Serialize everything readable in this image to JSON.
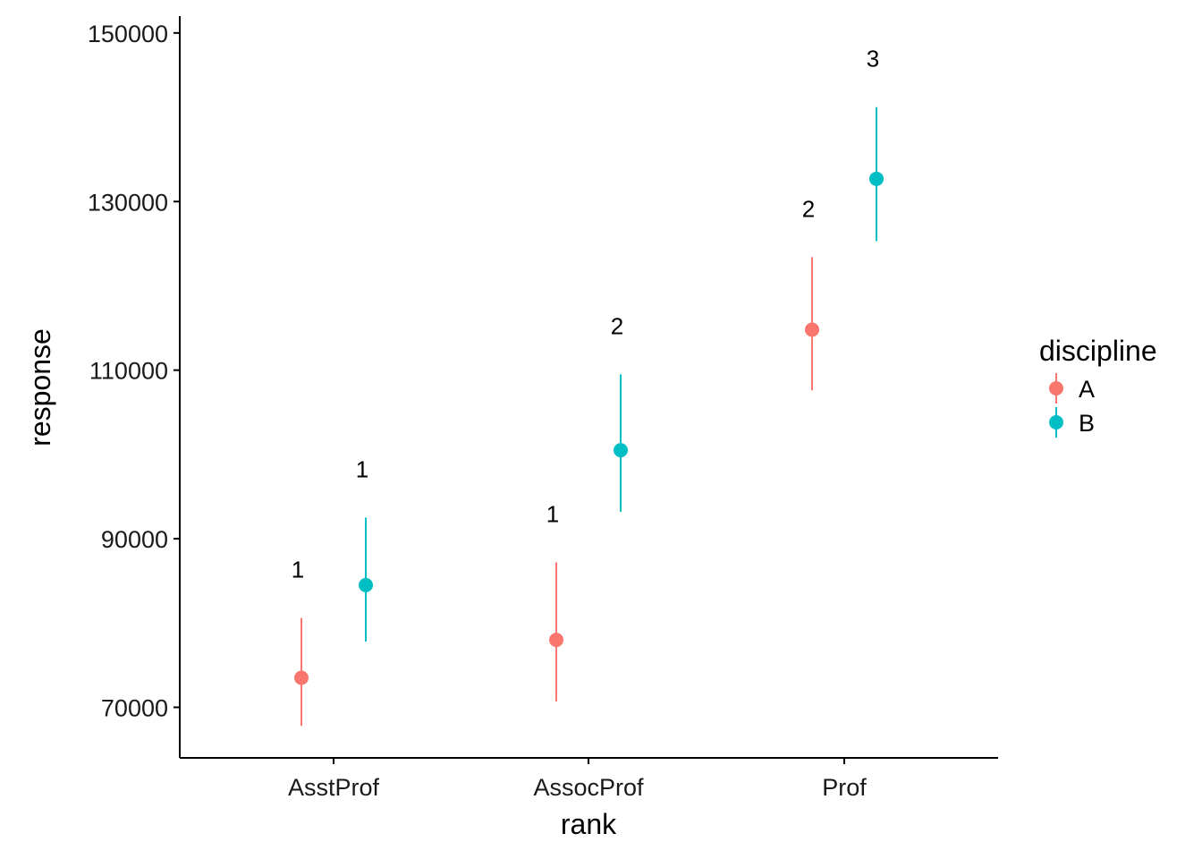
{
  "chart_data": {
    "type": "scatter",
    "xlabel": "rank",
    "ylabel": "response",
    "categories": [
      "AsstProf",
      "AssocProf",
      "Prof"
    ],
    "ylim": [
      64000,
      152000
    ],
    "yticks": [
      70000,
      90000,
      110000,
      130000,
      150000
    ],
    "ytick_labels": [
      "70000",
      "90000",
      "110000",
      "130000",
      "150000"
    ],
    "legend": {
      "title": "discipline",
      "position": "right",
      "entries": [
        {
          "label": "A",
          "color": "#F8766D"
        },
        {
          "label": "B",
          "color": "#00BFC4"
        }
      ]
    },
    "series": [
      {
        "name": "A",
        "color": "#F8766D",
        "values": [
          73500,
          78000,
          114800
        ],
        "lower": [
          67800,
          70700,
          107600
        ],
        "upper": [
          80600,
          87200,
          123400
        ],
        "labels": [
          "1",
          "1",
          "2"
        ]
      },
      {
        "name": "B",
        "color": "#00BFC4",
        "values": [
          84500,
          100500,
          132700
        ],
        "lower": [
          77800,
          93200,
          125300
        ],
        "upper": [
          92500,
          109500,
          141200
        ],
        "labels": [
          "1",
          "2",
          "3"
        ]
      }
    ]
  }
}
